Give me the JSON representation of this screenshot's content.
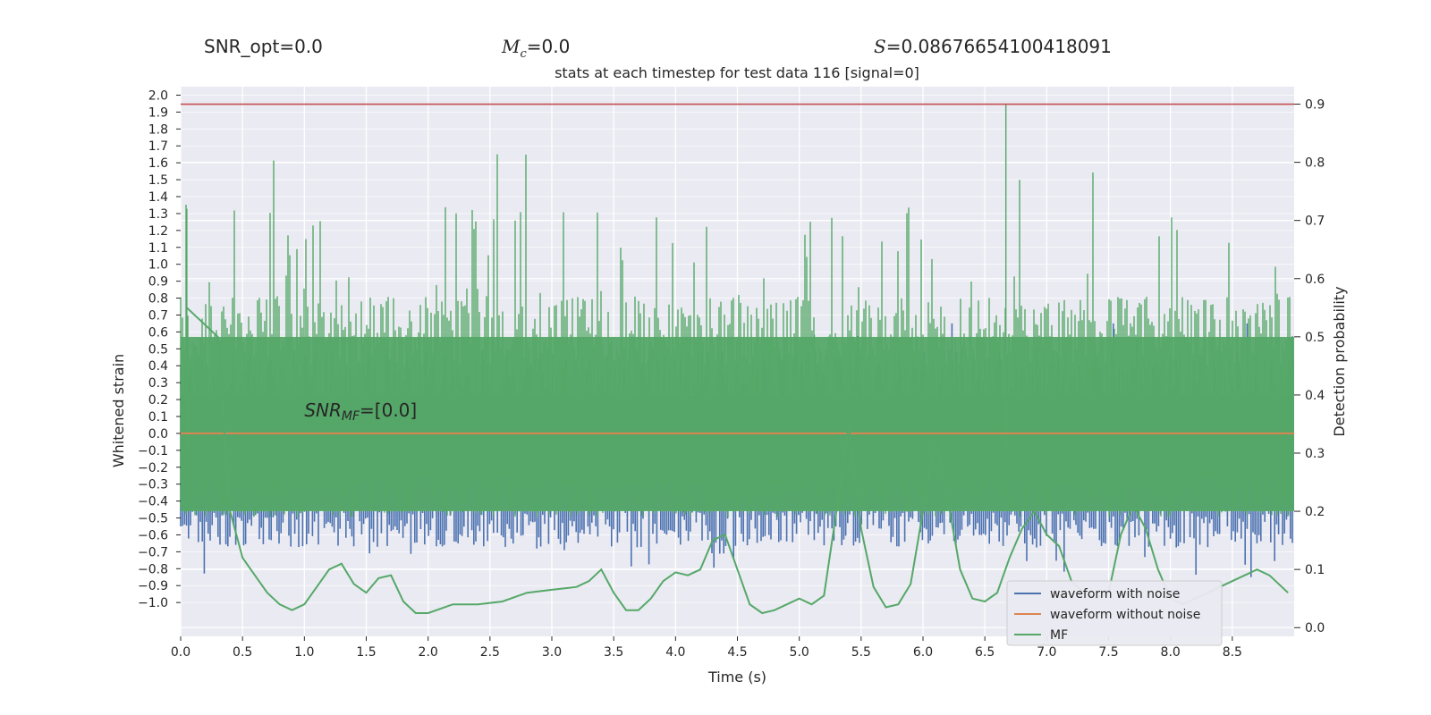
{
  "header": {
    "snr_opt": "SNR_opt=0.0",
    "mc_symbol": "M",
    "mc_sub": "c",
    "mc_value": "=0.0",
    "s_symbol": "S",
    "s_value": "=0.08676654100418091"
  },
  "chart_data": {
    "type": "line",
    "title": "stats at each timestep for test data 116 [signal=0]",
    "xlabel": "Time (s)",
    "ylabel_left": "Whitened strain",
    "ylabel_right": "Detection probability",
    "xlim": [
      0.0,
      9.0
    ],
    "ylim_left": [
      -1.2,
      2.05
    ],
    "ylim_right": [
      -0.015,
      0.93
    ],
    "x_ticks": [
      "0.0",
      "0.5",
      "1.0",
      "1.5",
      "2.0",
      "2.5",
      "3.0",
      "3.5",
      "4.0",
      "4.5",
      "5.0",
      "5.5",
      "6.0",
      "6.5",
      "7.0",
      "7.5",
      "8.0",
      "8.5"
    ],
    "y_left_ticks": [
      "2.0",
      "1.9",
      "1.8",
      "1.7",
      "1.6",
      "1.5",
      "1.4",
      "1.3",
      "1.2",
      "1.1",
      "1.0",
      "0.9",
      "0.8",
      "0.7",
      "0.6",
      "0.5",
      "0.4",
      "0.3",
      "0.2",
      "0.1",
      "0.0",
      "−0.1",
      "−0.2",
      "−0.3",
      "−0.4",
      "−0.5",
      "−0.6",
      "−0.7",
      "−0.8",
      "−0.9",
      "−1.0"
    ],
    "y_right_ticks": [
      "0.9",
      "0.8",
      "0.7",
      "0.6",
      "0.5",
      "0.4",
      "0.3",
      "0.2",
      "0.1",
      "0.0"
    ],
    "threshold": 0.9,
    "annotation": {
      "label_symbol": "SNR",
      "label_sub": "MF",
      "label_value": "=[0.0]",
      "x": 1.0,
      "y": 0.1
    },
    "grid": true,
    "legend_position": "lower-right",
    "series": [
      {
        "name": "waveform with noise",
        "color": "#4c72b0",
        "axis": "left",
        "kind": "noise",
        "band": [
          -0.5,
          0.45
        ],
        "extremes": [
          -0.85,
          0.65
        ]
      },
      {
        "name": "waveform without noise",
        "color": "#dd8452",
        "axis": "left",
        "kind": "flat",
        "value": 0.0
      },
      {
        "name": "MF",
        "color": "#55a868",
        "axis": "right",
        "x": [
          0.05,
          0.3,
          0.4,
          0.5,
          0.6,
          0.7,
          0.8,
          0.9,
          1.0,
          1.1,
          1.2,
          1.3,
          1.4,
          1.5,
          1.6,
          1.7,
          1.8,
          1.9,
          2.0,
          2.2,
          2.4,
          2.6,
          2.8,
          3.0,
          3.2,
          3.3,
          3.4,
          3.5,
          3.6,
          3.7,
          3.8,
          3.9,
          4.0,
          4.1,
          4.2,
          4.3,
          4.4,
          4.5,
          4.6,
          4.7,
          4.8,
          4.9,
          5.0,
          5.1,
          5.2,
          5.3,
          5.4,
          5.5,
          5.6,
          5.7,
          5.8,
          5.9,
          6.0,
          6.1,
          6.2,
          6.3,
          6.4,
          6.5,
          6.6,
          6.7,
          6.8,
          6.9,
          7.0,
          7.1,
          7.2,
          7.3,
          7.4,
          7.5,
          7.6,
          7.7,
          7.8,
          7.9,
          8.0,
          8.1,
          8.2,
          8.3,
          8.4,
          8.5,
          8.6,
          8.7,
          8.8,
          8.85,
          8.95
        ],
        "y": [
          0.55,
          0.5,
          0.2,
          0.12,
          0.09,
          0.06,
          0.04,
          0.03,
          0.04,
          0.07,
          0.1,
          0.11,
          0.075,
          0.06,
          0.085,
          0.09,
          0.045,
          0.025,
          0.025,
          0.04,
          0.04,
          0.045,
          0.06,
          0.065,
          0.07,
          0.08,
          0.1,
          0.06,
          0.03,
          0.03,
          0.05,
          0.08,
          0.095,
          0.09,
          0.1,
          0.15,
          0.16,
          0.1,
          0.04,
          0.025,
          0.03,
          0.04,
          0.05,
          0.04,
          0.055,
          0.2,
          0.35,
          0.17,
          0.07,
          0.035,
          0.04,
          0.075,
          0.2,
          0.32,
          0.22,
          0.1,
          0.05,
          0.045,
          0.06,
          0.12,
          0.17,
          0.2,
          0.16,
          0.14,
          0.08,
          0.06,
          0.05,
          0.06,
          0.16,
          0.21,
          0.17,
          0.1,
          0.05,
          0.04,
          0.05,
          0.06,
          0.07,
          0.08,
          0.09,
          0.1,
          0.09,
          0.08,
          0.06
        ]
      }
    ]
  }
}
